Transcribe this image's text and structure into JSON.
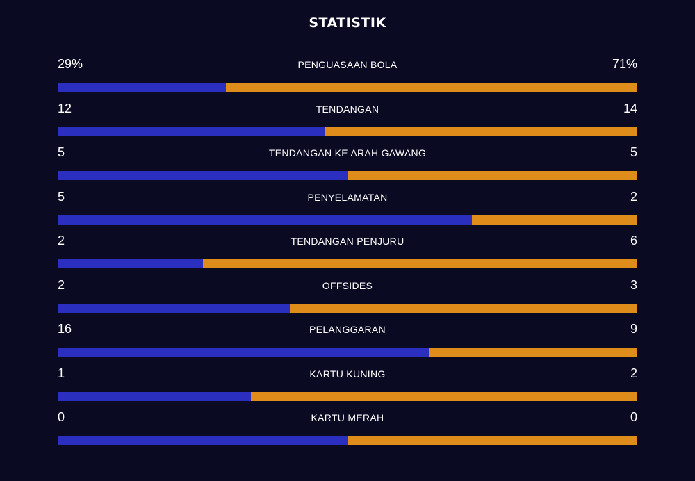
{
  "title": "STATISTIK",
  "colors": {
    "background": "#0a0a23",
    "home_bar": "#2a2fbf",
    "away_bar": "#e08c1a",
    "text": "#ffffff"
  },
  "stats": [
    {
      "name": "PENGUASAAN BOLA",
      "home": "29%",
      "away": "71%",
      "home_share": 0.29
    },
    {
      "name": "TENDANGAN",
      "home": "12",
      "away": "14",
      "home_share": 0.4615
    },
    {
      "name": "TENDANGAN KE ARAH GAWANG",
      "home": "5",
      "away": "5",
      "home_share": 0.5
    },
    {
      "name": "PENYELAMATAN",
      "home": "5",
      "away": "2",
      "home_share": 0.7143
    },
    {
      "name": "TENDANGAN PENJURU",
      "home": "2",
      "away": "6",
      "home_share": 0.25
    },
    {
      "name": "OFFSIDES",
      "home": "2",
      "away": "3",
      "home_share": 0.4
    },
    {
      "name": "PELANGGARAN",
      "home": "16",
      "away": "9",
      "home_share": 0.64
    },
    {
      "name": "KARTU KUNING",
      "home": "1",
      "away": "2",
      "home_share": 0.3333
    },
    {
      "name": "KARTU MERAH",
      "home": "0",
      "away": "0",
      "home_share": 0.5
    }
  ]
}
